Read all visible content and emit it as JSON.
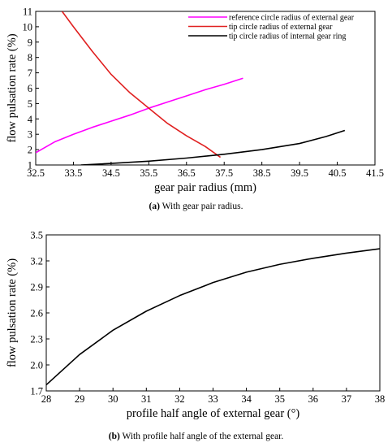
{
  "chart_data": [
    {
      "type": "line",
      "xlabel": "gear pair radius (mm)",
      "ylabel": "flow pulsation rate (%)",
      "xlim": [
        32.5,
        41.5
      ],
      "ylim": [
        1,
        11
      ],
      "xticks": [
        "32.5",
        "33.5",
        "34.5",
        "35.5",
        "36.5",
        "37.5",
        "38.5",
        "39.5",
        "40.5",
        "41.5"
      ],
      "yticks": [
        "1",
        "2",
        "3",
        "4",
        "5",
        "6",
        "7",
        "8",
        "9",
        "10",
        "11"
      ],
      "grid": false,
      "legend": "top-right",
      "series": [
        {
          "name": "reference circle radius of external gear",
          "color": "#ff00ff",
          "x": [
            32.5,
            33.0,
            33.5,
            34.0,
            34.5,
            35.0,
            35.5,
            36.0,
            36.5,
            37.0,
            37.5,
            38.0
          ],
          "y": [
            1.8,
            2.5,
            3.0,
            3.45,
            3.85,
            4.25,
            4.7,
            5.1,
            5.5,
            5.9,
            6.25,
            6.65
          ]
        },
        {
          "name": "tip circle radius of external gear",
          "color": "#e02020",
          "x": [
            33.2,
            33.5,
            34.0,
            34.5,
            35.0,
            35.5,
            36.0,
            36.5,
            37.0,
            37.4
          ],
          "y": [
            11.0,
            10.0,
            8.4,
            6.9,
            5.7,
            4.7,
            3.7,
            2.9,
            2.2,
            1.5
          ]
        },
        {
          "name": "tip circle radius of internal gear ring",
          "color": "#000000",
          "x": [
            33.7,
            34.5,
            35.5,
            36.5,
            37.5,
            38.5,
            39.5,
            40.2,
            40.7
          ],
          "y": [
            1.0,
            1.1,
            1.25,
            1.45,
            1.7,
            2.0,
            2.4,
            2.85,
            3.25
          ]
        }
      ]
    },
    {
      "type": "line",
      "xlabel": "profile half angle of external gear (°)",
      "ylabel": "flow pulsation rate (%)",
      "xlim": [
        28,
        38
      ],
      "ylim": [
        1.7,
        3.5
      ],
      "xticks": [
        "28",
        "29",
        "30",
        "31",
        "32",
        "33",
        "34",
        "35",
        "36",
        "37",
        "38"
      ],
      "yticks": [
        "1.7",
        "2.0",
        "2.3",
        "2.6",
        "2.9",
        "3.2",
        "3.5"
      ],
      "grid": false,
      "series": [
        {
          "color": "#000000",
          "x": [
            28,
            29,
            30,
            31,
            32,
            33,
            34,
            35,
            36,
            37,
            38
          ],
          "y": [
            1.77,
            2.12,
            2.4,
            2.62,
            2.8,
            2.95,
            3.07,
            3.16,
            3.23,
            3.29,
            3.34
          ]
        }
      ]
    }
  ],
  "captions": {
    "a_label": "(a)",
    "a_text": " With gear pair radius.",
    "b_label": "(b)",
    "b_text": " With profile half angle of the external gear."
  }
}
